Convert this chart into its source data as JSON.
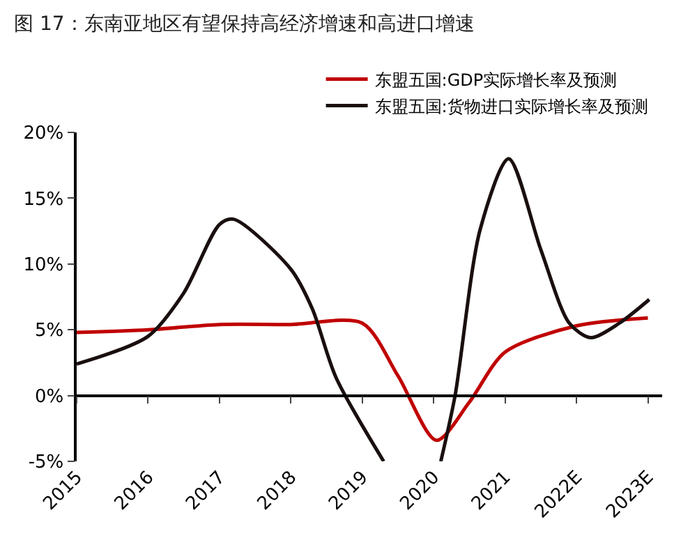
{
  "chart_data": {
    "type": "line",
    "title": "图 17：东南亚地区有望保持高经济增速和高进口增速",
    "xlim": [
      2015,
      2023.2
    ],
    "xticks": [
      {
        "value": 2015,
        "label": "2015"
      },
      {
        "value": 2016,
        "label": "2016"
      },
      {
        "value": 2017,
        "label": "2017"
      },
      {
        "value": 2018,
        "label": "2018"
      },
      {
        "value": 2019,
        "label": "2019"
      },
      {
        "value": 2020,
        "label": "2020"
      },
      {
        "value": 2021,
        "label": "2021"
      },
      {
        "value": 2022,
        "label": "2022E"
      },
      {
        "value": 2023,
        "label": "2023E"
      }
    ],
    "ylim": [
      -5,
      20
    ],
    "yticks": [
      {
        "value": -5,
        "label": "-5%"
      },
      {
        "value": 0,
        "label": "0%"
      },
      {
        "value": 5,
        "label": "5%"
      },
      {
        "value": 10,
        "label": "10%"
      },
      {
        "value": 15,
        "label": "15%"
      },
      {
        "value": 20,
        "label": "20%"
      }
    ],
    "series": [
      {
        "name": "东盟五国:GDP实际增长率及预测",
        "color": "#c00000",
        "x": [
          2015,
          2016,
          2017,
          2018,
          2019,
          2019.5,
          2020.04,
          2020.5,
          2021,
          2022,
          2023
        ],
        "values": [
          4.8,
          5.0,
          5.4,
          5.4,
          5.5,
          1.5,
          -3.4,
          -0.5,
          3.3,
          5.3,
          5.9
        ]
      },
      {
        "name": "东盟五国:货物进口实际增长率及预测",
        "color": "#1a0f0f",
        "x": [
          2015,
          2016,
          2016.5,
          2017,
          2017.2,
          2018,
          2018.3,
          2018.63,
          2019.3,
          2019.7,
          2020.1,
          2020.3,
          2020.65,
          2021.05,
          2021.5,
          2021.9,
          2022.2,
          2022.6,
          2023.02
        ],
        "values": [
          2.4,
          4.5,
          7.8,
          13.0,
          13.4,
          9.6,
          6.6,
          1.4,
          -5,
          null,
          -5,
          0,
          12.6,
          18.0,
          11.1,
          5.5,
          4.4,
          5.5,
          7.3
        ]
      }
    ],
    "legend": "top right",
    "line_style": "solid",
    "marker": "none"
  }
}
